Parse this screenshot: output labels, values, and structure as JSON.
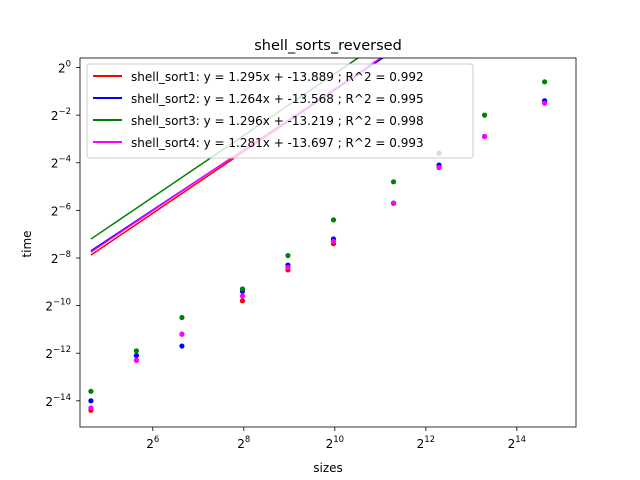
{
  "chart_data": {
    "type": "scatter",
    "title": "shell_sorts_reversed",
    "xlabel": "sizes",
    "ylabel": "time",
    "xscale": "log2",
    "yscale": "log2",
    "xlim_log2": [
      4.4,
      15.3
    ],
    "ylim_log2": [
      -15.1,
      0.4
    ],
    "grid": false,
    "legend_position": "upper left",
    "x_ticks": [
      {
        "base": "2",
        "exp": "6",
        "log2": 6
      },
      {
        "base": "2",
        "exp": "8",
        "log2": 8
      },
      {
        "base": "2",
        "exp": "10",
        "log2": 10
      },
      {
        "base": "2",
        "exp": "12",
        "log2": 12
      },
      {
        "base": "2",
        "exp": "14",
        "log2": 14
      }
    ],
    "y_ticks": [
      {
        "base": "2",
        "exp": "0",
        "log2": 0
      },
      {
        "base": "2",
        "exp": "−2",
        "log2": -2
      },
      {
        "base": "2",
        "exp": "−4",
        "log2": -4
      },
      {
        "base": "2",
        "exp": "−6",
        "log2": -6
      },
      {
        "base": "2",
        "exp": "−8",
        "log2": -8
      },
      {
        "base": "2",
        "exp": "−10",
        "log2": -10
      },
      {
        "base": "2",
        "exp": "−12",
        "log2": -12
      },
      {
        "base": "2",
        "exp": "−14",
        "log2": -14
      }
    ],
    "x": [
      4.64,
      5.64,
      6.64,
      7.97,
      8.97,
      9.97,
      11.29,
      12.29,
      13.29,
      14.61
    ],
    "series": [
      {
        "name": "shell_sort1",
        "color": "#ff0000",
        "fit_label": "shell_sort1: y = 1.295x + -13.889 ; R^2 = 0.992",
        "fit": {
          "slope": 1.295,
          "intercept": -13.889
        },
        "points": [
          -14.4,
          -12.3,
          -11.2,
          -9.8,
          -8.5,
          -7.4,
          -5.7,
          -4.2,
          -2.9,
          -1.4
        ]
      },
      {
        "name": "shell_sort2",
        "color": "#0000ff",
        "fit_label": "shell_sort2: y = 1.264x + -13.568 ; R^2 = 0.995",
        "fit": {
          "slope": 1.264,
          "intercept": -13.568
        },
        "points": [
          -14.0,
          -12.1,
          -11.7,
          -9.4,
          -8.3,
          -7.2,
          -5.7,
          -4.1,
          -2.9,
          -1.4
        ]
      },
      {
        "name": "shell_sort3",
        "color": "#008000",
        "fit_label": "shell_sort3: y = 1.296x + -13.219 ; R^2 = 0.998",
        "fit": {
          "slope": 1.296,
          "intercept": -13.219
        },
        "points": [
          -13.6,
          -11.9,
          -10.5,
          -9.3,
          -7.9,
          -6.4,
          -4.8,
          -3.6,
          -2.0,
          -0.6
        ]
      },
      {
        "name": "shell_sort4",
        "color": "#ff00ff",
        "fit_label": "shell_sort4: y = 1.281x + -13.697 ; R^2 = 0.993",
        "fit": {
          "slope": 1.281,
          "intercept": -13.697
        },
        "points": [
          -14.3,
          -12.3,
          -11.2,
          -9.6,
          -8.4,
          -7.3,
          -5.7,
          -4.2,
          -2.9,
          -1.5
        ]
      }
    ]
  }
}
